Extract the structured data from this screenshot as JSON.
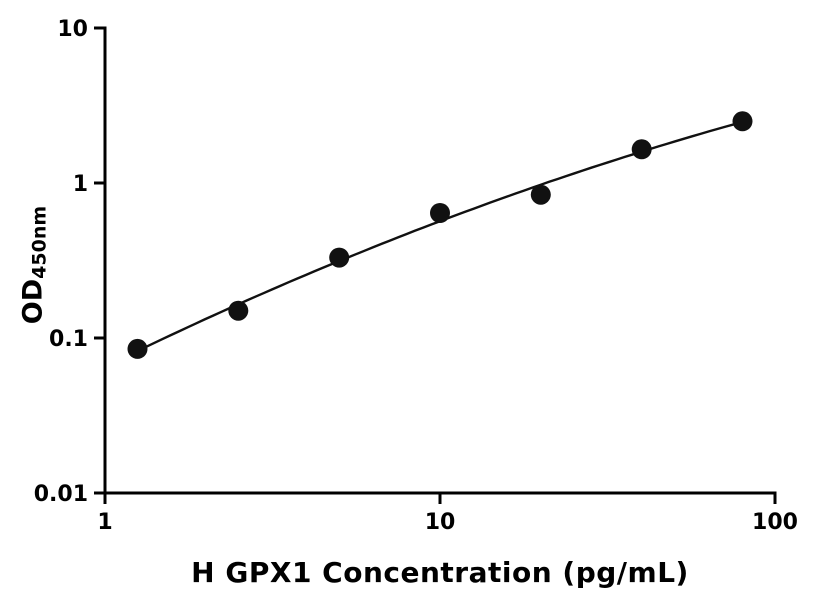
{
  "chart_data": {
    "type": "scatter",
    "title": "",
    "xlabel": "H GPX1 Concentration (pg/mL)",
    "ylabel": "OD450nm",
    "ylabel_main": "OD",
    "ylabel_sub": "450nm",
    "x": [
      1.25,
      2.5,
      5,
      10,
      20,
      40,
      80
    ],
    "y": [
      0.085,
      0.15,
      0.33,
      0.64,
      0.84,
      1.65,
      2.5
    ],
    "xscale": "log",
    "yscale": "log",
    "xlim": [
      1,
      100
    ],
    "ylim": [
      0.01,
      10
    ],
    "x_ticks": [
      1,
      10,
      100
    ],
    "x_tick_labels": [
      "1",
      "10",
      "100"
    ],
    "y_ticks": [
      0.01,
      0.1,
      1,
      10
    ],
    "y_tick_labels": [
      "0.01",
      "0.1",
      "1",
      "10"
    ],
    "grid": false,
    "legend": null,
    "fit_curve": "smooth fit through points (log-log quadratic)",
    "marker_color": "#111111",
    "line_color": "#111111",
    "axis_color": "#000000",
    "background": "#ffffff"
  }
}
